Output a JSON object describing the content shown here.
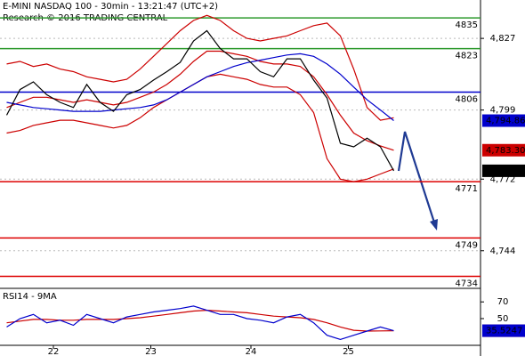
{
  "chart_data": [
    {
      "type": "line",
      "title": "E-MINI NASDAQ 100 - 30min - 13:21:47 (UTC+2)",
      "subtitle": "Research © 2016 TRADING CENTRAL",
      "x": [
        0,
        1,
        2,
        3,
        4,
        5,
        6,
        7,
        8,
        9,
        10,
        11,
        12,
        13,
        14,
        15,
        16,
        17,
        18,
        19,
        20,
        21,
        22,
        23,
        24,
        25,
        26,
        27,
        28,
        29
      ],
      "xlim": [
        -0.5,
        35.5
      ],
      "ylim": [
        4730,
        4842
      ],
      "yticks": [
        {
          "value": 4827,
          "label": "4,827"
        },
        {
          "value": 4799,
          "label": "4,799"
        },
        {
          "value": 4772,
          "label": "4,772"
        },
        {
          "value": 4744,
          "label": "4,744"
        }
      ],
      "grid": true,
      "levels": [
        {
          "value": 4835,
          "color": "#2e9a2e"
        },
        {
          "value": 4823,
          "color": "#2e9a2e"
        },
        {
          "value": 4806,
          "color": "#0000cc"
        },
        {
          "value": 4771,
          "color": "#dd0000"
        },
        {
          "value": 4749,
          "color": "#dd0000"
        },
        {
          "value": 4734,
          "color": "#dd0000"
        }
      ],
      "series": [
        {
          "color": "#cc0000",
          "values": [
            4817,
            4818,
            4816,
            4817,
            4815,
            4814,
            4812,
            4811,
            4810,
            4811,
            4815,
            4820,
            4825,
            4830,
            4834,
            4836,
            4834,
            4830,
            4827,
            4826,
            4827,
            4828,
            4830,
            4832,
            4833,
            4828,
            4815,
            4800,
            4795,
            4796
          ]
        },
        {
          "color": "#cc0000",
          "values": [
            4790,
            4791,
            4793,
            4794,
            4795,
            4795,
            4794,
            4793,
            4792,
            4793,
            4796,
            4800,
            4803,
            4806,
            4809,
            4812,
            4813,
            4812,
            4811,
            4809,
            4808,
            4808,
            4805,
            4798,
            4780,
            4772,
            4771,
            4772,
            4774,
            4776
          ]
        },
        {
          "color": "#cc0000",
          "box": true,
          "last_label": "4,783.30",
          "values": [
            4800,
            4802,
            4804,
            4804,
            4803,
            4802,
            4803,
            4802,
            4801,
            4802,
            4804,
            4806,
            4809,
            4813,
            4818,
            4822,
            4822,
            4821,
            4820,
            4818,
            4817,
            4817,
            4816,
            4812,
            4805,
            4797,
            4790,
            4787,
            4785,
            4783.3
          ]
        },
        {
          "color": "#0000cc",
          "box": true,
          "last_label": "4,794.86",
          "values": [
            4802,
            4801,
            4800,
            4799.5,
            4799,
            4798.5,
            4798.5,
            4798.5,
            4799,
            4799.5,
            4800,
            4801,
            4803,
            4806,
            4809,
            4812,
            4814,
            4816,
            4817.5,
            4818.5,
            4819.5,
            4820.5,
            4821,
            4820,
            4817,
            4813,
            4808,
            4803,
            4799,
            4794.86
          ]
        },
        {
          "color": "#000000",
          "box": true,
          "last_label": "4,775.25",
          "values": [
            4797,
            4807,
            4810,
            4805,
            4802,
            4800,
            4809,
            4802,
            4798.5,
            4805,
            4807,
            4810.7,
            4814,
            4817.6,
            4826,
            4830,
            4823,
            4819,
            4819,
            4814,
            4812,
            4819,
            4819,
            4810.7,
            4803.7,
            4786,
            4784.6,
            4788,
            4784.6,
            4775.25
          ]
        }
      ]
    },
    {
      "type": "line",
      "title": "RSI14 - 9MA",
      "x": [
        0,
        1,
        2,
        3,
        4,
        5,
        6,
        7,
        8,
        9,
        10,
        11,
        12,
        13,
        14,
        15,
        16,
        17,
        18,
        19,
        20,
        21,
        22,
        23,
        24,
        25,
        26,
        27,
        28,
        29
      ],
      "xlim": [
        -0.5,
        35.5
      ],
      "xticks": [
        {
          "value": 3.5,
          "label": "22"
        },
        {
          "value": 10.8,
          "label": "23"
        },
        {
          "value": 18.3,
          "label": "24"
        },
        {
          "value": 25.6,
          "label": "25"
        }
      ],
      "ylim": [
        18,
        83
      ],
      "yticks": [
        70,
        50
      ],
      "series": [
        {
          "color": "#cc0000",
          "box": true,
          "values": [
            45,
            47,
            49,
            49,
            48,
            48,
            49,
            49,
            49,
            50,
            51,
            53,
            55,
            57,
            59,
            60,
            59,
            58,
            57,
            55,
            53,
            52,
            51,
            49,
            45,
            40,
            36,
            35,
            35.3,
            35.495
          ]
        },
        {
          "color": "#0000cc",
          "box": true,
          "values": [
            40,
            50,
            55,
            45,
            48,
            42,
            55,
            50,
            45,
            52,
            55,
            58,
            60,
            62,
            65,
            60,
            55,
            55,
            50,
            48,
            45,
            52,
            55,
            45,
            30,
            25,
            30,
            35,
            40,
            35.5247
          ]
        }
      ]
    }
  ]
}
